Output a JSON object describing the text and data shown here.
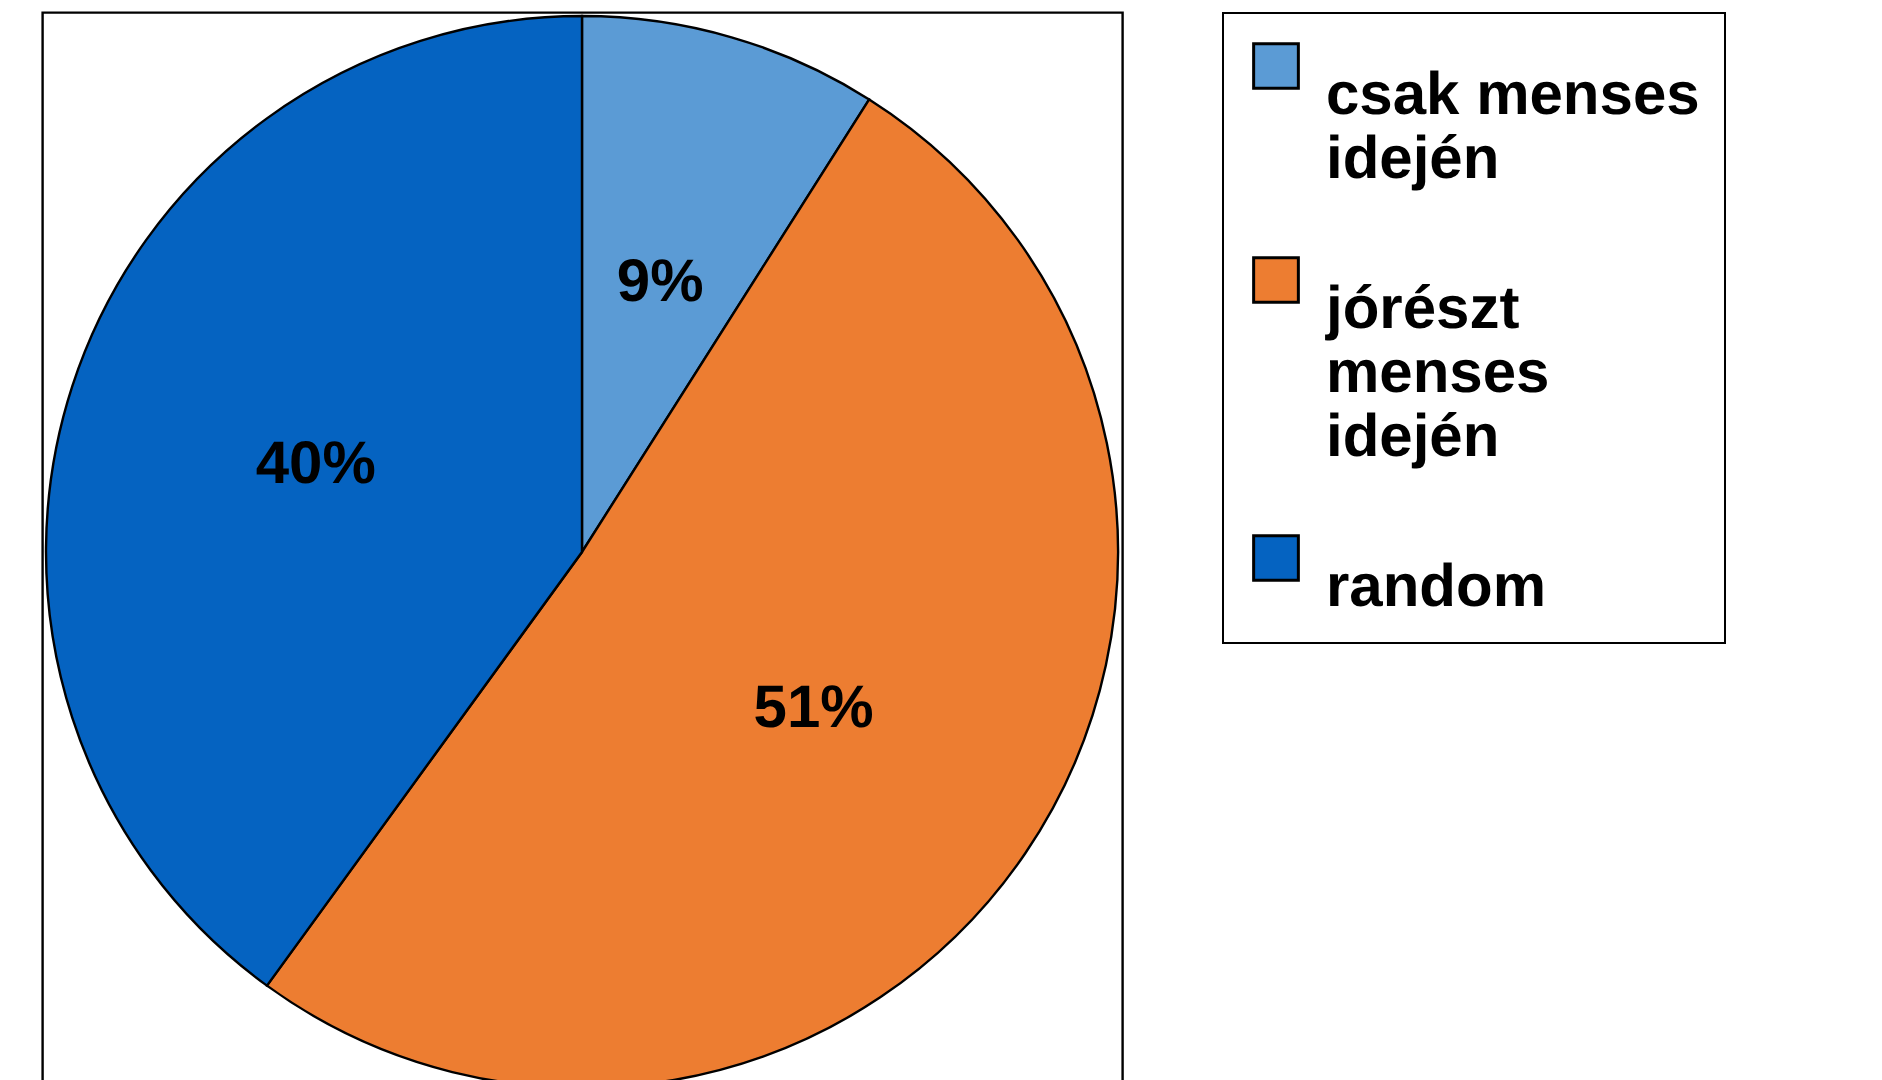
{
  "chart_data": {
    "type": "pie",
    "categories": [
      "csak menses idején",
      "jórészt menses idején",
      "random"
    ],
    "values": [
      9,
      51,
      40
    ],
    "colors": [
      "#5b9bd5",
      "#ed7d31",
      "#0563c1"
    ],
    "value_labels": [
      "9%",
      "51%",
      "40%"
    ],
    "legend": "right"
  }
}
